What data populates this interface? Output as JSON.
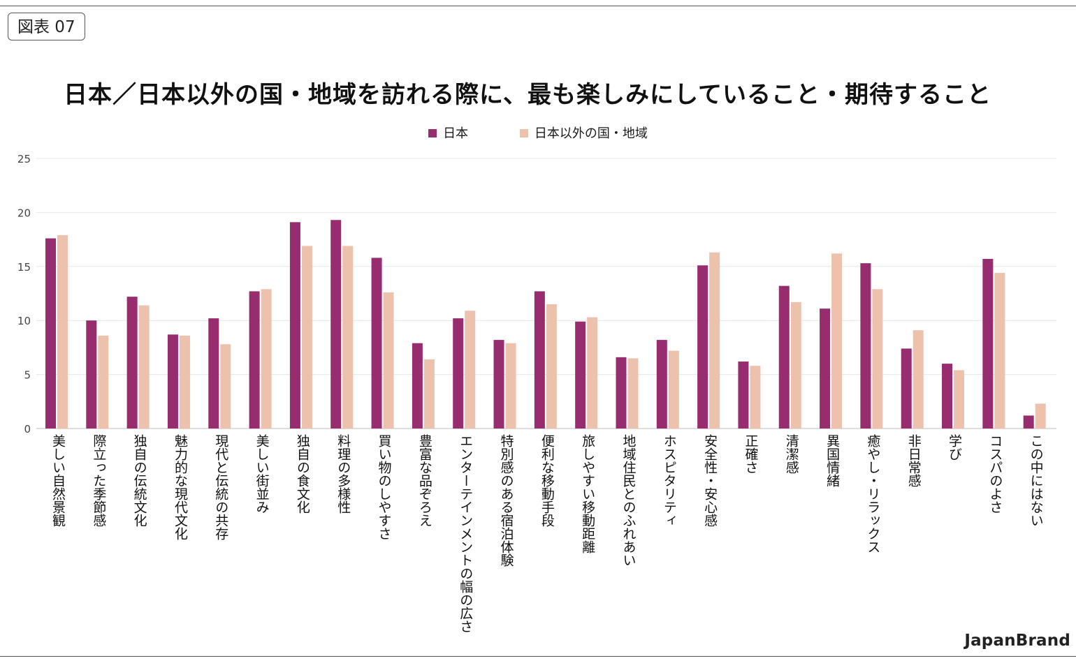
{
  "badge": "図表 07",
  "brand": "JapanBrand",
  "chart_data": {
    "type": "bar",
    "title": "日本／日本以外の国・地域を訪れる際に、最も楽しみにしていること・期待すること",
    "xlabel": "",
    "ylabel": "",
    "ylim": [
      0,
      25
    ],
    "yticks": [
      0,
      5,
      10,
      15,
      20,
      25
    ],
    "grid": true,
    "legend_position": "top-center",
    "categories": [
      "美しい自然景観",
      "際立った季節感",
      "独自の伝統文化",
      "魅力的な現代文化",
      "現代と伝統の共存",
      "美しい街並み",
      "独自の食文化",
      "料理の多様性",
      "買い物のしやすさ",
      "豊富な品ぞろえ",
      "エンターテインメントの幅の広さ",
      "特別感のある宿泊体験",
      "便利な移動手段",
      "旅しやすい移動距離",
      "地域住民とのふれあい",
      "ホスピタリティ",
      "安全性・安心感",
      "正確さ",
      "清潔感",
      "異国情緒",
      "癒やし・リラックス",
      "非日常感",
      "学び",
      "コスパのよさ",
      "この中にはない"
    ],
    "series": [
      {
        "name": "日本",
        "color": "#972d6f",
        "values": [
          17.6,
          10.0,
          12.2,
          8.7,
          10.2,
          12.7,
          19.1,
          19.3,
          15.8,
          7.9,
          10.2,
          8.2,
          12.7,
          9.9,
          6.6,
          8.2,
          15.1,
          6.2,
          13.2,
          11.1,
          15.3,
          7.4,
          6.0,
          15.7,
          1.2
        ]
      },
      {
        "name": "日本以外の国・地域",
        "color": "#ecc2ad",
        "values": [
          17.9,
          8.6,
          11.4,
          8.6,
          7.8,
          12.9,
          16.9,
          16.9,
          12.6,
          6.4,
          10.9,
          7.9,
          11.5,
          10.3,
          6.5,
          7.2,
          16.3,
          5.8,
          11.7,
          16.2,
          12.9,
          9.1,
          5.4,
          14.4,
          2.3
        ]
      }
    ]
  }
}
